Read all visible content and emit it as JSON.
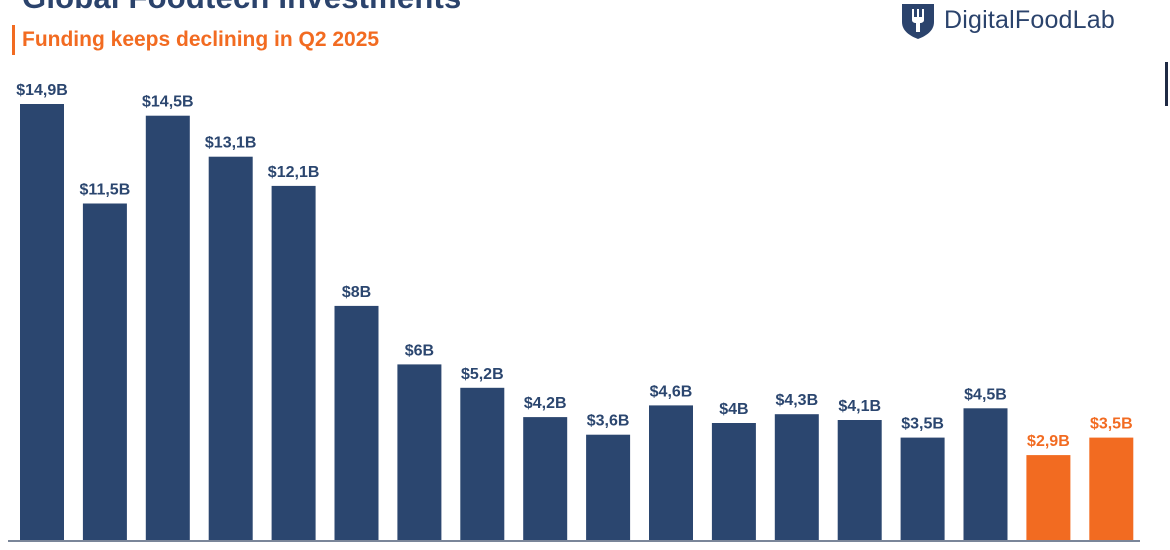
{
  "header": {
    "title": "Global Foodtech Investments",
    "subtitle": "Funding keeps declining in Q2 2025"
  },
  "logo": {
    "text": "DigitalFoodLab",
    "icon": "fork-shield-icon"
  },
  "colors": {
    "bar": "#2b466f",
    "highlight": "#f26b21",
    "title": "#2b436c",
    "subtitle": "#f26b21"
  },
  "chart_data": {
    "type": "bar",
    "title": "Global Foodtech Investments",
    "subtitle": "Funding keeps declining in Q2 2025",
    "xlabel": "",
    "ylabel": "",
    "unit": "billion USD",
    "grid": false,
    "legend": "none",
    "values": [
      14.9,
      11.5,
      14.5,
      13.1,
      12.1,
      8,
      6,
      5.2,
      4.2,
      3.6,
      4.6,
      4,
      4.3,
      4.1,
      3.5,
      4.5,
      2.9,
      3.5
    ],
    "labels": [
      "$14,9B",
      "$11,5B",
      "$14,5B",
      "$13,1B",
      "$12,1B",
      "$8B",
      "$6B",
      "$5,2B",
      "$4,2B",
      "$3,6B",
      "$4,6B",
      "$4B",
      "$4,3B",
      "$4,1B",
      "$3,5B",
      "$4,5B",
      "$2,9B",
      "$3,5B"
    ],
    "highlighted": [
      false,
      false,
      false,
      false,
      false,
      false,
      false,
      false,
      false,
      false,
      false,
      false,
      false,
      false,
      false,
      false,
      true,
      true
    ],
    "ylim": [
      0,
      14.9
    ]
  }
}
